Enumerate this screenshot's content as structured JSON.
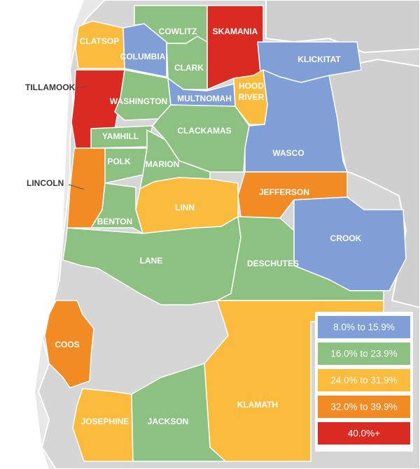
{
  "colors": {
    "blue": "#7f9fd6",
    "green": "#8dc181",
    "yellow": "#fbbb3c",
    "orange": "#f28b24",
    "red": "#d92b22",
    "land_outside": "#d6d6d6",
    "water": "#ffffff"
  },
  "legend": [
    {
      "label": "8.0% to 15.9%",
      "color": "blue"
    },
    {
      "label": "16.0% to 23.9%",
      "color": "green"
    },
    {
      "label": "24.0% to 31.9%",
      "color": "yellow"
    },
    {
      "label": "32.0% to 39.9%",
      "color": "orange"
    },
    {
      "label": "40.0%+",
      "color": "red"
    }
  ],
  "counties": [
    {
      "name": "CLATSOP",
      "color": "yellow"
    },
    {
      "name": "COLUMBIA",
      "color": "blue"
    },
    {
      "name": "COWLITZ",
      "color": "green"
    },
    {
      "name": "SKAMANIA",
      "color": "red"
    },
    {
      "name": "CLARK",
      "color": "green"
    },
    {
      "name": "KLICKITAT",
      "color": "blue"
    },
    {
      "name": "TILLAMOOK",
      "color": "red"
    },
    {
      "name": "WASHINGTON",
      "color": "green"
    },
    {
      "name": "MULTNOMAH",
      "color": "blue"
    },
    {
      "name": "HOOD RIVER",
      "color": "yellow"
    },
    {
      "name": "YAMHILL",
      "color": "green"
    },
    {
      "name": "CLACKAMAS",
      "color": "green"
    },
    {
      "name": "POLK",
      "color": "green"
    },
    {
      "name": "MARION",
      "color": "green"
    },
    {
      "name": "WASCO",
      "color": "blue"
    },
    {
      "name": "LINCOLN",
      "color": "orange"
    },
    {
      "name": "JEFFERSON",
      "color": "orange"
    },
    {
      "name": "LINN",
      "color": "yellow"
    },
    {
      "name": "BENTON",
      "color": "green"
    },
    {
      "name": "CROOK",
      "color": "blue"
    },
    {
      "name": "LANE",
      "color": "green"
    },
    {
      "name": "DESCHUTES",
      "color": "green"
    },
    {
      "name": "COOS",
      "color": "orange"
    },
    {
      "name": "KLAMATH",
      "color": "yellow"
    },
    {
      "name": "JOSEPHINE",
      "color": "yellow"
    },
    {
      "name": "JACKSON",
      "color": "green"
    }
  ]
}
